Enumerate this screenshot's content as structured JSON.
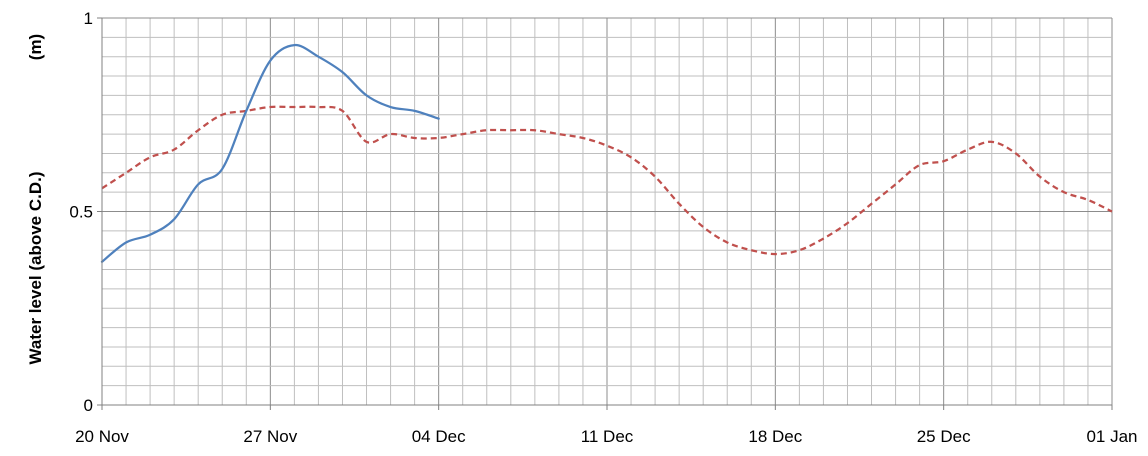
{
  "chart_data": {
    "type": "line",
    "title": "",
    "xlabel": "",
    "ylabel": "Water level (above C.D.)",
    "yunit": "(m)",
    "xlim": [
      "2020-11-20",
      "2021-01-01"
    ],
    "ylim": [
      0,
      1
    ],
    "x_ticks": [
      "20 Nov",
      "27 Nov",
      "04 Dec",
      "11 Dec",
      "18 Dec",
      "25 Dec",
      "01 Jan"
    ],
    "y_ticks": [
      "0",
      "0.5",
      "1"
    ],
    "grid": true,
    "legend": "none",
    "series": [
      {
        "color": "#4f81bd",
        "style": "solid",
        "points": [
          [
            "2020-11-20",
            0.37
          ],
          [
            "2020-11-21",
            0.42
          ],
          [
            "2020-11-22",
            0.44
          ],
          [
            "2020-11-23",
            0.48
          ],
          [
            "2020-11-24",
            0.57
          ],
          [
            "2020-11-25",
            0.61
          ],
          [
            "2020-11-26",
            0.76
          ],
          [
            "2020-11-27",
            0.89
          ],
          [
            "2020-11-28",
            0.93
          ],
          [
            "2020-11-29",
            0.9
          ],
          [
            "2020-11-30",
            0.86
          ],
          [
            "2020-12-01",
            0.8
          ],
          [
            "2020-12-02",
            0.77
          ],
          [
            "2020-12-03",
            0.76
          ],
          [
            "2020-12-04",
            0.74
          ]
        ]
      },
      {
        "color": "#c0504d",
        "style": "dashed",
        "points": [
          [
            "2020-11-20",
            0.56
          ],
          [
            "2020-11-21",
            0.6
          ],
          [
            "2020-11-22",
            0.64
          ],
          [
            "2020-11-23",
            0.66
          ],
          [
            "2020-11-24",
            0.71
          ],
          [
            "2020-11-25",
            0.75
          ],
          [
            "2020-11-26",
            0.76
          ],
          [
            "2020-11-27",
            0.77
          ],
          [
            "2020-11-28",
            0.77
          ],
          [
            "2020-11-29",
            0.77
          ],
          [
            "2020-11-30",
            0.76
          ],
          [
            "2020-12-01",
            0.68
          ],
          [
            "2020-12-02",
            0.7
          ],
          [
            "2020-12-03",
            0.69
          ],
          [
            "2020-12-04",
            0.69
          ],
          [
            "2020-12-05",
            0.7
          ],
          [
            "2020-12-06",
            0.71
          ],
          [
            "2020-12-07",
            0.71
          ],
          [
            "2020-12-08",
            0.71
          ],
          [
            "2020-12-09",
            0.7
          ],
          [
            "2020-12-10",
            0.69
          ],
          [
            "2020-12-11",
            0.67
          ],
          [
            "2020-12-12",
            0.64
          ],
          [
            "2020-12-13",
            0.59
          ],
          [
            "2020-12-14",
            0.52
          ],
          [
            "2020-12-15",
            0.46
          ],
          [
            "2020-12-16",
            0.42
          ],
          [
            "2020-12-17",
            0.4
          ],
          [
            "2020-12-18",
            0.39
          ],
          [
            "2020-12-19",
            0.4
          ],
          [
            "2020-12-20",
            0.43
          ],
          [
            "2020-12-21",
            0.47
          ],
          [
            "2020-12-22",
            0.52
          ],
          [
            "2020-12-23",
            0.57
          ],
          [
            "2020-12-24",
            0.62
          ],
          [
            "2020-12-25",
            0.63
          ],
          [
            "2020-12-26",
            0.66
          ],
          [
            "2020-12-27",
            0.68
          ],
          [
            "2020-12-28",
            0.65
          ],
          [
            "2020-12-29",
            0.59
          ],
          [
            "2020-12-30",
            0.55
          ],
          [
            "2020-12-31",
            0.53
          ],
          [
            "2021-01-01",
            0.5
          ]
        ]
      }
    ]
  }
}
